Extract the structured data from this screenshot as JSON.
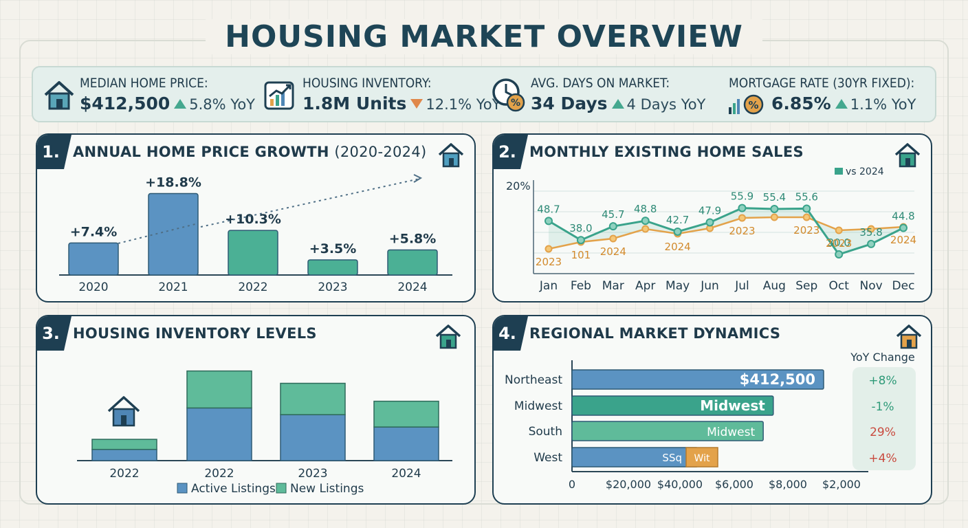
{
  "title": "HOUSING MARKET OVERVIEW",
  "kpis": [
    {
      "label": "MEDIAN HOME PRICE:",
      "value": "$412,500",
      "delta": "5.8% YoY",
      "direction": "up",
      "icon": "house-icon"
    },
    {
      "label": "HOUSING INVENTORY:",
      "value": "1.8M Units",
      "delta": "12.1% YoY",
      "direction": "down",
      "icon": "growth-chart-icon"
    },
    {
      "label": "AVG. DAYS ON MARKET:",
      "value": "34 Days",
      "delta": "4 Days YoY",
      "direction": "up",
      "icon": "clock-percent-icon"
    },
    {
      "label": "MORTGAGE RATE (30YR FIXED):",
      "value": "6.85%",
      "delta": "1.1% YoY",
      "direction": "up",
      "icon": "rate-chart-icon"
    }
  ],
  "colors": {
    "navy": "#1e3f52",
    "blue": "#4f86b5",
    "teal": "#3aa38b",
    "green": "#6fbf9b",
    "orange": "#e3a24a",
    "up": "#45a88f",
    "down": "#e0884a",
    "red": "#c94a3e"
  },
  "panels": {
    "p1": {
      "num": "1.",
      "title": "ANNUAL HOME PRICE GROWTH",
      "title_suffix": "(2020-2024)"
    },
    "p2": {
      "num": "2.",
      "title": "MONTHLY EXISTING HOME SALES"
    },
    "p3": {
      "num": "3.",
      "title": "HOUSING INVENTORY LEVELS"
    },
    "p4": {
      "num": "4.",
      "title": "REGIONAL MARKET DYNAMICS"
    }
  },
  "chart_data": [
    {
      "type": "bar",
      "categories": [
        "2020",
        "2021",
        "2022",
        "2023",
        "2024"
      ],
      "values": [
        7.4,
        18.8,
        10.3,
        3.5,
        5.8
      ],
      "data_labels": [
        "+7.4%",
        "+18.8%",
        "+10.3%",
        "+3.5%",
        "+5.8%"
      ],
      "ylim": [
        0,
        20
      ]
    },
    {
      "type": "line",
      "categories": [
        "Jan",
        "Feb",
        "Mar",
        "Apr",
        "May",
        "Jun",
        "Jul",
        "Aug",
        "Sep",
        "Oct",
        "Nov",
        "Dec"
      ],
      "ytick_label": "20%",
      "legend": "vs 2024",
      "series": [
        {
          "values": [
            48.7,
            38.0,
            45.7,
            48.8,
            42.7,
            47.9,
            55.9,
            55.4,
            55.6,
            30.0,
            35.8,
            44.8
          ],
          "labels": [
            "48.7",
            "38.0",
            "45.7",
            "48.8",
            "42.7",
            "47.9",
            "55.9",
            "55.4",
            "55.6",
            "30.0",
            "35.8",
            "44.8"
          ]
        },
        {
          "labels": [
            "2023",
            "101",
            "2024",
            "",
            "2024",
            "",
            "2023",
            "",
            "2023",
            "2023",
            "",
            "2024"
          ]
        }
      ]
    },
    {
      "type": "bar",
      "stacked": true,
      "categories": [
        "2022",
        "2022",
        "2023",
        "2024"
      ],
      "legend": [
        "Active Listings",
        "New Listings"
      ],
      "series": [
        {
          "name": "Active Listings",
          "values": [
            1.0,
            4.7,
            4.1,
            3.0
          ]
        },
        {
          "name": "New Listings",
          "values": [
            0.9,
            3.3,
            2.8,
            2.3
          ]
        }
      ]
    },
    {
      "type": "bar",
      "orientation": "horizontal",
      "categories": [
        "Northeast",
        "Midwest",
        "South",
        "West"
      ],
      "bar_labels": [
        "$412,500",
        "Midwest",
        "Midwest",
        "SSq"
      ],
      "west_extra_label": "Wit",
      "values": [
        1.0,
        0.8,
        0.76,
        0.5
      ],
      "xticks": [
        "0",
        "$20,000",
        "$40,000",
        "$6,000",
        "$8,000",
        "$2,000"
      ],
      "yoy_header": "YoY Change",
      "yoy": [
        "+8%",
        "-1%",
        "29%",
        "+4%"
      ]
    }
  ]
}
